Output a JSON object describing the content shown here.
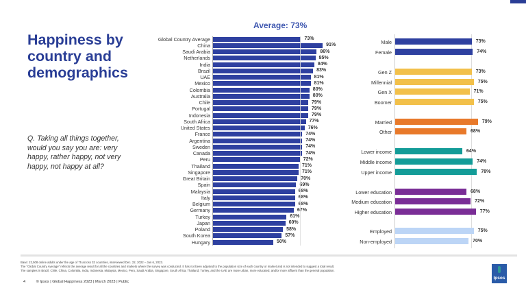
{
  "title": "Happiness by country and demographics",
  "question": "Q. Taking all things together, would you say you are: very happy, rather happy, not very happy, not happy at all?",
  "colors": {
    "brand": "#2a3e96",
    "gender": "#2e40a0",
    "generation": "#f2c04a",
    "marital": "#e8792a",
    "income": "#139c98",
    "education": "#7a2d96",
    "employment": "#bcd5f6"
  },
  "chart_data": [
    {
      "type": "bar",
      "orientation": "horizontal",
      "title": "Average: 73%",
      "reference_line": 73,
      "categories": [
        "Global Country Average",
        "China",
        "Saudi Arabia",
        "Netherlands",
        "India",
        "Brazil",
        "UAE",
        "Mexico",
        "Colombia",
        "Australia",
        "Chile",
        "Portugal",
        "Indonesia",
        "South Africa",
        "United States",
        "France",
        "Argentina",
        "Sweden",
        "Canada",
        "Peru",
        "Thailand",
        "Singapore",
        "Great Britain",
        "Spain",
        "Malaysia",
        "Italy",
        "Belgium",
        "Germany",
        "Turkey",
        "Japan",
        "Poland",
        "South Korea",
        "Hungary"
      ],
      "values": [
        73,
        91,
        86,
        85,
        84,
        83,
        81,
        81,
        80,
        80,
        79,
        79,
        79,
        77,
        76,
        74,
        74,
        74,
        74,
        72,
        71,
        71,
        70,
        69,
        68,
        68,
        68,
        67,
        61,
        60,
        58,
        57,
        50
      ],
      "data_labels": [
        "73%",
        "91%",
        "86%",
        "85%",
        "84%",
        "83%",
        "81%",
        "81%",
        "80%",
        "80%",
        "79%",
        "79%",
        "79%",
        "77%",
        "76%",
        "74%",
        "74%",
        "74%",
        "74%",
        "72%",
        "71%",
        "71%",
        "70%",
        "69%",
        "68%",
        "68%",
        "68%",
        "67%",
        "61%",
        "60%",
        "58%",
        "57%",
        "50%"
      ],
      "color": "#2e40a0"
    },
    {
      "type": "bar",
      "orientation": "horizontal",
      "reference_line": 73,
      "groups": [
        {
          "color_key": "gender",
          "categories": [
            "Male",
            "Female"
          ],
          "values": [
            73,
            74
          ],
          "data_labels": [
            "73%",
            "74%"
          ]
        },
        {
          "color_key": "generation",
          "categories": [
            "Gen Z",
            "Millennial",
            "Gen X",
            "Boomer"
          ],
          "values": [
            73,
            75,
            71,
            75
          ],
          "data_labels": [
            "73%",
            "75%",
            "71%",
            "75%"
          ]
        },
        {
          "color_key": "marital",
          "categories": [
            "Married",
            "Other"
          ],
          "values": [
            79,
            68
          ],
          "data_labels": [
            "79%",
            "68%"
          ]
        },
        {
          "color_key": "income",
          "categories": [
            "Lower income",
            "Middle income",
            "Upper income"
          ],
          "values": [
            64,
            74,
            78
          ],
          "data_labels": [
            "64%",
            "74%",
            "78%"
          ]
        },
        {
          "color_key": "education",
          "categories": [
            "Lower education",
            "Medium education",
            "Higher education"
          ],
          "values": [
            68,
            72,
            77
          ],
          "data_labels": [
            "68%",
            "72%",
            "77%"
          ]
        },
        {
          "color_key": "employment",
          "categories": [
            "Employed",
            "Non-employed"
          ],
          "values": [
            75,
            70
          ],
          "data_labels": [
            "75%",
            "70%"
          ]
        }
      ]
    }
  ],
  "notes": [
    "Base: 22,508 online adults under the age of 75 across 32 countries, interviewed Dec. 22, 2022 – Jan 6, 2023.",
    "The \"Global Country Average\" reflects the average result for all the countries and markets where the survey was conducted. It has not been adjusted to the population size of each country or market and is not intended to suggest a total result.",
    "The samples in Brazil, Chile, China, Colombia, India, Indonesia, Malaysia, Mexico, Peru, Saudi Arabia, Singapore, South Africa, Thailand, Turkey, and the UAE are more urban, more educated, and/or more affluent than the general population."
  ],
  "footer": {
    "page": "4",
    "text": "© Ipsos | Global Happiness 2023 | March 2023 | Public"
  },
  "logo": "Ipsos"
}
